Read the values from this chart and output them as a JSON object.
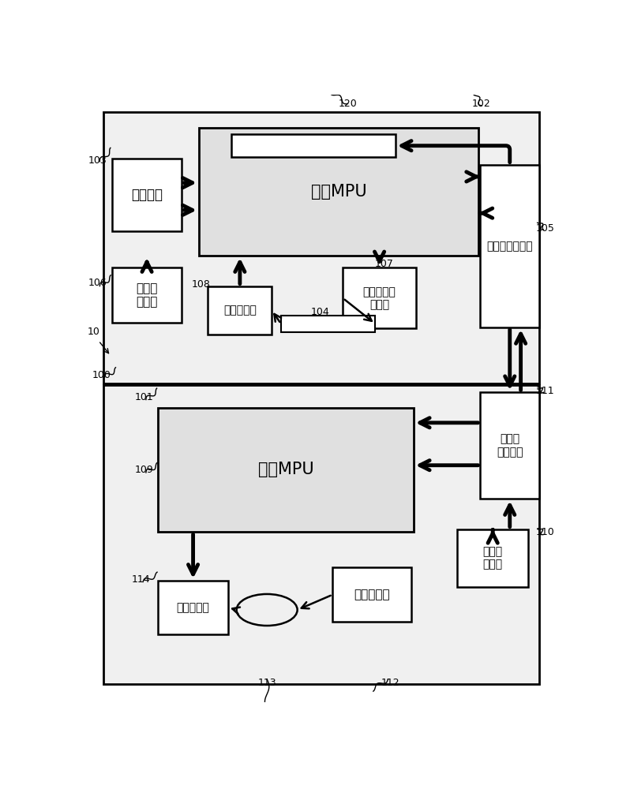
{
  "bg_color": "#ffffff",
  "line_color": "#000000",
  "text_camera_mpu": "相朿MPU",
  "text_lens_mpu": "镜头MPU",
  "text_operation_unit": "操作单元",
  "text_gyro_sensor_cam": "陷螺仪\n传感器",
  "text_position_sensor_cam": "位置传感器",
  "text_image_sensor_actuator": "图像传感器\n致动器",
  "text_camera_side_contact": "相朿侧接触端子",
  "text_lens_side_contact": "镜头侧\n接触端子",
  "text_gyro_sensor_lens": "陷螺仪\n传感器",
  "text_lens_actuator": "镜头致动器",
  "text_position_sensor_lens": "位置传感器",
  "label_10": "10",
  "label_100": "100",
  "label_101": "101",
  "label_102": "102",
  "label_103": "103",
  "label_104": "104",
  "label_105": "105",
  "label_106": "106",
  "label_107": "107",
  "label_108": "108",
  "label_109": "109",
  "label_110": "110",
  "label_111": "111",
  "label_112": "112",
  "label_113": "113",
  "label_114": "114",
  "label_120": "120"
}
